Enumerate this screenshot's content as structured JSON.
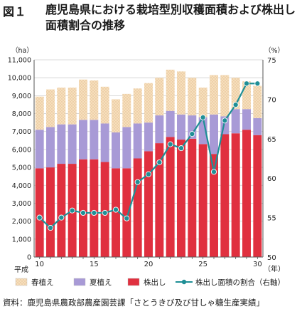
{
  "figure": {
    "number": "図１",
    "title": "鹿児島県における栽培型別収穫面積および株出し面積割合の推移",
    "source": "資料：鹿児島県農政部農産園芸課「さとうきび及び甘しゃ糖生産実績」"
  },
  "chart_data": {
    "type": "bar",
    "stacked": true,
    "categories": [
      "10",
      "11",
      "12",
      "13",
      "14",
      "15",
      "16",
      "17",
      "18",
      "19",
      "20",
      "21",
      "22",
      "23",
      "24",
      "25",
      "26",
      "27",
      "28",
      "29",
      "30"
    ],
    "x_tick_labels": [
      "10",
      "15",
      "20",
      "25",
      "30"
    ],
    "era_label": "平成",
    "x_unit": "（年）",
    "y_unit_left": "（ha）",
    "y_unit_right": "（%）",
    "ylim": [
      0,
      11000
    ],
    "y_ticks": [
      "0",
      "1,000",
      "2,000",
      "3,000",
      "4,000",
      "5,000",
      "6,000",
      "7,000",
      "8,000",
      "9,000",
      "10,000",
      "11,000"
    ],
    "y2lim": [
      50,
      75
    ],
    "y2_ticks": [
      "50",
      "55",
      "60",
      "65",
      "70",
      "75"
    ],
    "series": [
      {
        "name": "株出し",
        "color": "#e0303f",
        "values": [
          4950,
          5000,
          5200,
          5200,
          5450,
          5450,
          5300,
          4950,
          4950,
          5500,
          5900,
          6350,
          6700,
          6550,
          6600,
          6300,
          5750,
          6850,
          6900,
          7100,
          6800
        ]
      },
      {
        "name": "夏植え",
        "color": "#a89ad6",
        "values": [
          2150,
          2250,
          2200,
          2200,
          2200,
          2200,
          2150,
          2000,
          2300,
          1950,
          1600,
          1550,
          1450,
          1400,
          1300,
          1500,
          2200,
          1000,
          1350,
          1150,
          950
        ]
      },
      {
        "name": "春植え",
        "color": "#f6dfbd",
        "values": [
          1850,
          2100,
          2050,
          2050,
          2250,
          2200,
          2050,
          1850,
          1850,
          1950,
          2200,
          2100,
          2300,
          2400,
          2100,
          1650,
          2200,
          2300,
          1750,
          1550,
          1800
        ]
      }
    ],
    "line_series": {
      "name": "株出し面積の割合（右軸）",
      "color": "#1f8f96",
      "axis": "right",
      "values": [
        55.0,
        53.7,
        55.0,
        55.9,
        55.6,
        55.6,
        55.6,
        56.0,
        54.9,
        59.5,
        60.5,
        62.0,
        64.3,
        63.8,
        65.6,
        67.7,
        60.8,
        67.3,
        69.3,
        72.0,
        72.0
      ]
    },
    "legend_position": "bottom"
  }
}
